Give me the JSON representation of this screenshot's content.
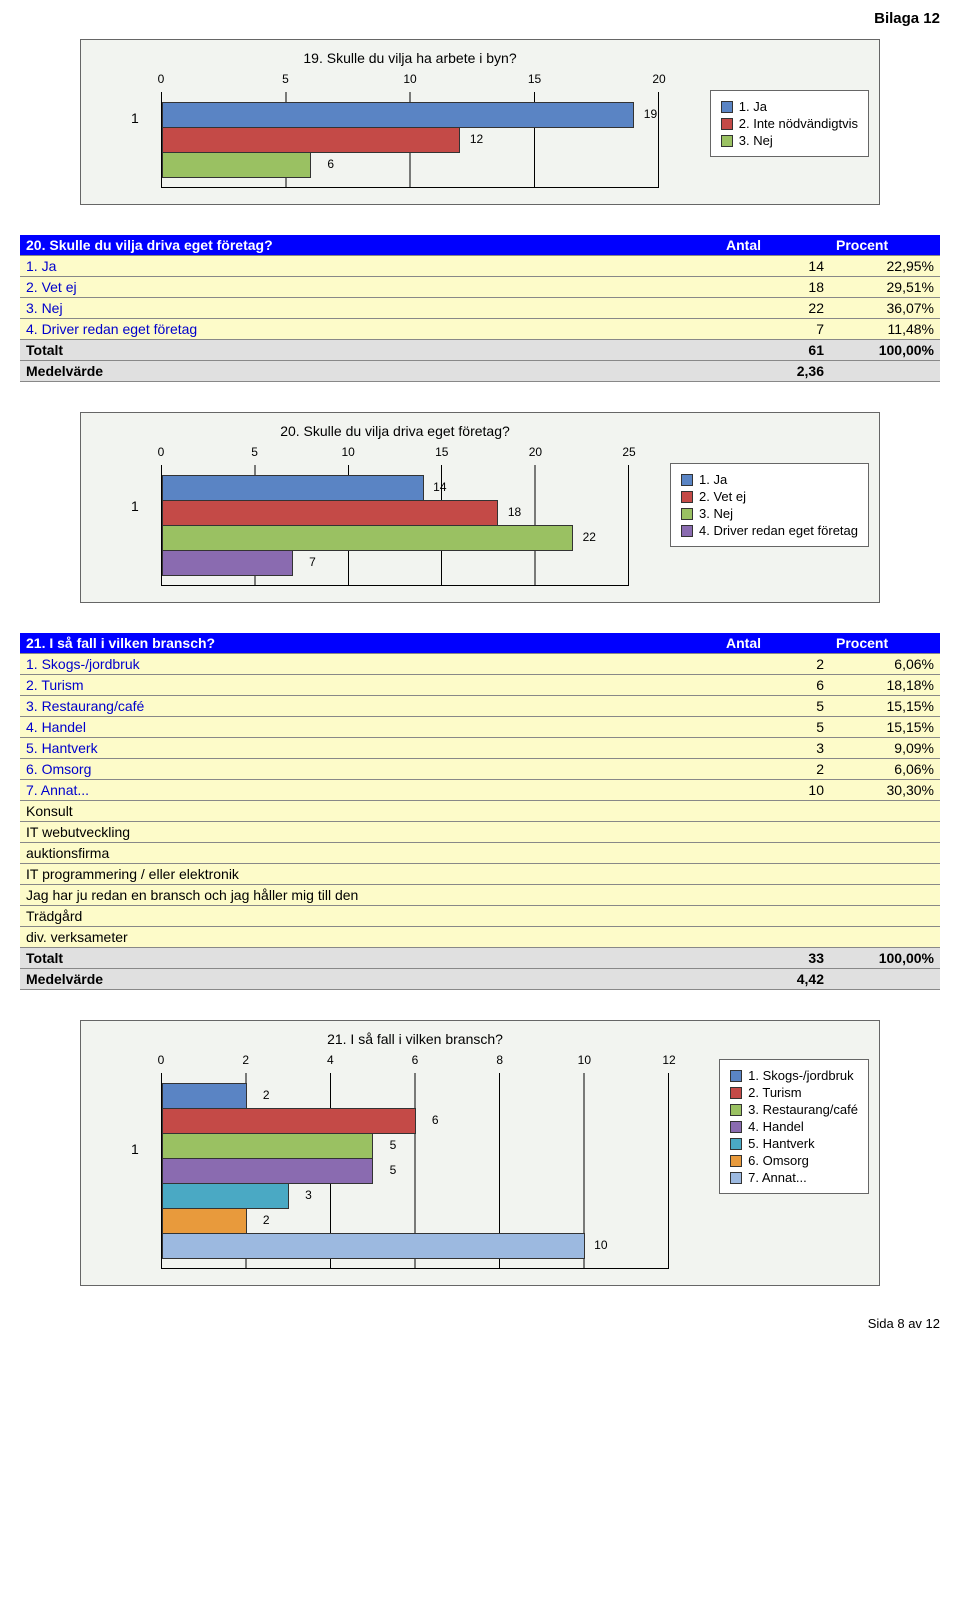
{
  "page_header": "Bilaga 12",
  "footer": "Sida 8 av 12",
  "colors": {
    "blue": "#5a84c4",
    "red": "#c44a47",
    "green": "#9ac162",
    "purple": "#8a6bb0",
    "teal": "#4aa9c4",
    "orange": "#e89a3c",
    "lightblue": "#9cb9e0",
    "panel_bg": "#f2f4f0",
    "header_bg": "#0000ff",
    "data_bg": "#fdfbc9",
    "gray_bg": "#e0e0e0",
    "link": "#0000cc"
  },
  "chart19": {
    "title": "19. Skulle du vilja ha arbete i byn?",
    "row_label": "1",
    "xmax": 20,
    "ticks": [
      0,
      5,
      10,
      15,
      20
    ],
    "bars": [
      {
        "value": 19,
        "color_key": "blue"
      },
      {
        "value": 12,
        "color_key": "red"
      },
      {
        "value": 6,
        "color_key": "green"
      }
    ],
    "legend": [
      {
        "label": "1. Ja",
        "color_key": "blue"
      },
      {
        "label": "2. Inte nödvändigtvis",
        "color_key": "red"
      },
      {
        "label": "3. Nej",
        "color_key": "green"
      }
    ]
  },
  "table20": {
    "title": "20. Skulle du vilja driva eget företag?",
    "header_antal": "Antal",
    "header_procent": "Procent",
    "rows": [
      {
        "label": "1. Ja",
        "antal": "14",
        "procent": "22,95%"
      },
      {
        "label": "2. Vet ej",
        "antal": "18",
        "procent": "29,51%"
      },
      {
        "label": "3. Nej",
        "antal": "22",
        "procent": "36,07%"
      },
      {
        "label": "4. Driver redan eget företag",
        "antal": "7",
        "procent": "11,48%"
      }
    ],
    "totalt_label": "Totalt",
    "totalt_antal": "61",
    "totalt_procent": "100,00%",
    "medel_label": "Medelvärde",
    "medel_val": "2,36"
  },
  "chart20": {
    "title": "20. Skulle du vilja driva eget företag?",
    "row_label": "1",
    "xmax": 25,
    "ticks": [
      0,
      5,
      10,
      15,
      20,
      25
    ],
    "bars": [
      {
        "value": 14,
        "color_key": "blue"
      },
      {
        "value": 18,
        "color_key": "red"
      },
      {
        "value": 22,
        "color_key": "green"
      },
      {
        "value": 7,
        "color_key": "purple"
      }
    ],
    "legend": [
      {
        "label": "1. Ja",
        "color_key": "blue"
      },
      {
        "label": "2. Vet ej",
        "color_key": "red"
      },
      {
        "label": "3. Nej",
        "color_key": "green"
      },
      {
        "label": "4. Driver redan eget företag",
        "color_key": "purple"
      }
    ]
  },
  "table21": {
    "title": "21. I så fall i vilken bransch?",
    "header_antal": "Antal",
    "header_procent": "Procent",
    "rows": [
      {
        "label": "1. Skogs-/jordbruk",
        "antal": "2",
        "procent": "6,06%"
      },
      {
        "label": "2. Turism",
        "antal": "6",
        "procent": "18,18%"
      },
      {
        "label": "3. Restaurang/café",
        "antal": "5",
        "procent": "15,15%"
      },
      {
        "label": "4. Handel",
        "antal": "5",
        "procent": "15,15%"
      },
      {
        "label": "5. Hantverk",
        "antal": "3",
        "procent": "9,09%"
      },
      {
        "label": "6. Omsorg",
        "antal": "2",
        "procent": "6,06%"
      },
      {
        "label": "7. Annat...",
        "antal": "10",
        "procent": "30,30%"
      }
    ],
    "plain_rows": [
      "Konsult",
      "IT webutveckling",
      "auktionsfirma",
      "IT programmering / eller elektronik",
      "Jag har ju redan en bransch och jag håller mig till den",
      "Trädgård",
      "div. verksameter"
    ],
    "totalt_label": "Totalt",
    "totalt_antal": "33",
    "totalt_procent": "100,00%",
    "medel_label": "Medelvärde",
    "medel_val": "4,42"
  },
  "chart21": {
    "title": "21. I så fall i vilken bransch?",
    "row_label": "1",
    "xmax": 12,
    "ticks": [
      0,
      2,
      4,
      6,
      8,
      10,
      12
    ],
    "bars": [
      {
        "value": 2,
        "color_key": "blue"
      },
      {
        "value": 6,
        "color_key": "red"
      },
      {
        "value": 5,
        "color_key": "green"
      },
      {
        "value": 5,
        "color_key": "purple"
      },
      {
        "value": 3,
        "color_key": "teal"
      },
      {
        "value": 2,
        "color_key": "orange"
      },
      {
        "value": 10,
        "color_key": "lightblue"
      }
    ],
    "legend": [
      {
        "label": "1. Skogs-/jordbruk",
        "color_key": "blue"
      },
      {
        "label": "2. Turism",
        "color_key": "red"
      },
      {
        "label": "3. Restaurang/café",
        "color_key": "green"
      },
      {
        "label": "4. Handel",
        "color_key": "purple"
      },
      {
        "label": "5. Hantverk",
        "color_key": "teal"
      },
      {
        "label": "6. Omsorg",
        "color_key": "orange"
      },
      {
        "label": "7. Annat...",
        "color_key": "lightblue"
      }
    ]
  }
}
